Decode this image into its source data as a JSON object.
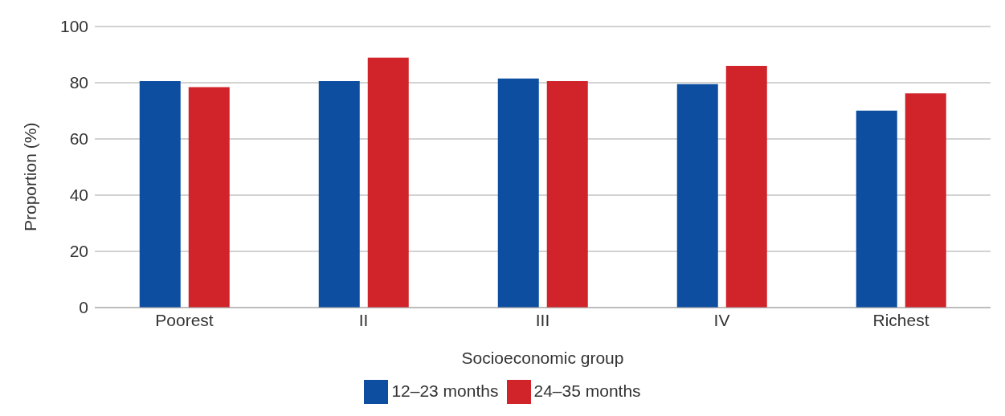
{
  "chart_data": {
    "type": "bar",
    "xlabel": "Socioeconomic group",
    "ylabel": "Proportion (%)",
    "categories": [
      "Poorest",
      "II",
      "III",
      "IV",
      "Richest"
    ],
    "series": [
      {
        "name": "12–23 months",
        "color": "#0d4ea1",
        "values": [
          80.6,
          80.6,
          81.5,
          79.5,
          70.1
        ]
      },
      {
        "name": "24–35 months",
        "color": "#d0232a",
        "values": [
          78.4,
          88.9,
          80.6,
          86,
          76.2
        ]
      }
    ],
    "ylim": [
      0,
      100
    ],
    "yticks": [
      0,
      20,
      40,
      60,
      80,
      100
    ],
    "grid": "y",
    "legend": "bottom"
  }
}
